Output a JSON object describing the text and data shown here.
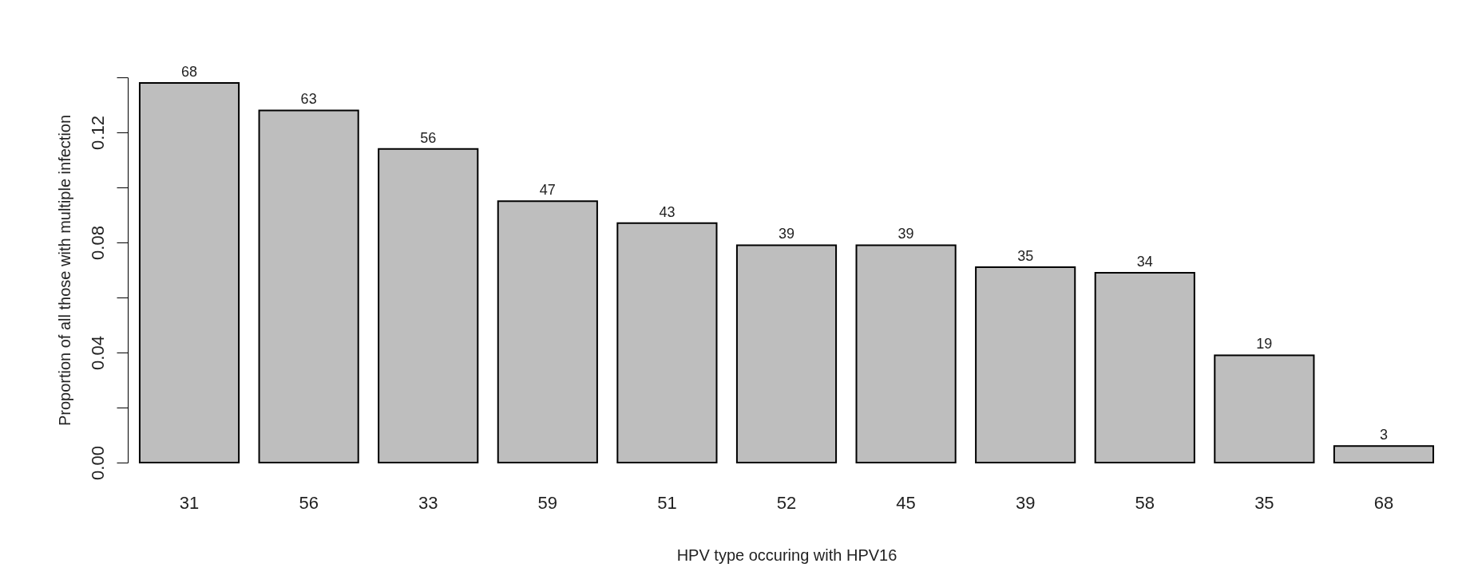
{
  "chart_data": {
    "type": "bar",
    "xlabel": "HPV type occuring with HPV16",
    "ylabel": "Proportion of all those with multiple infection",
    "categories": [
      "31",
      "56",
      "33",
      "59",
      "51",
      "52",
      "45",
      "39",
      "58",
      "35",
      "68"
    ],
    "values": [
      0.138,
      0.128,
      0.114,
      0.095,
      0.087,
      0.079,
      0.079,
      0.071,
      0.069,
      0.039,
      0.006
    ],
    "annotations": [
      {
        "text": "68",
        "x": "31",
        "y": 0.138
      },
      {
        "text": "63",
        "x": "56",
        "y": 0.128
      },
      {
        "text": "56",
        "x": "33",
        "y": 0.114
      },
      {
        "text": "47",
        "x": "59",
        "y": 0.095
      },
      {
        "text": "43",
        "x": "51",
        "y": 0.087
      },
      {
        "text": "39",
        "x": "52",
        "y": 0.079
      },
      {
        "text": "39",
        "x": "45",
        "y": 0.079
      },
      {
        "text": "35",
        "x": "39",
        "y": 0.071
      },
      {
        "text": "34",
        "x": "58",
        "y": 0.069
      },
      {
        "text": "19",
        "x": "35",
        "y": 0.039
      },
      {
        "text": "3",
        "x": "68",
        "y": 0.006
      }
    ],
    "color": "#bebebe",
    "ylim": [
      0,
      0.14
    ],
    "yticks": [
      {
        "value": 0,
        "label": "0.00"
      },
      {
        "value": 0.02,
        "label": null
      },
      {
        "value": 0.04,
        "label": "0.04"
      },
      {
        "value": 0.06,
        "label": null
      },
      {
        "value": 0.08,
        "label": "0.08"
      },
      {
        "value": 0.1,
        "label": null
      },
      {
        "value": 0.12,
        "label": "0.12"
      },
      {
        "value": 0.14,
        "label": null
      }
    ],
    "grid": false
  }
}
